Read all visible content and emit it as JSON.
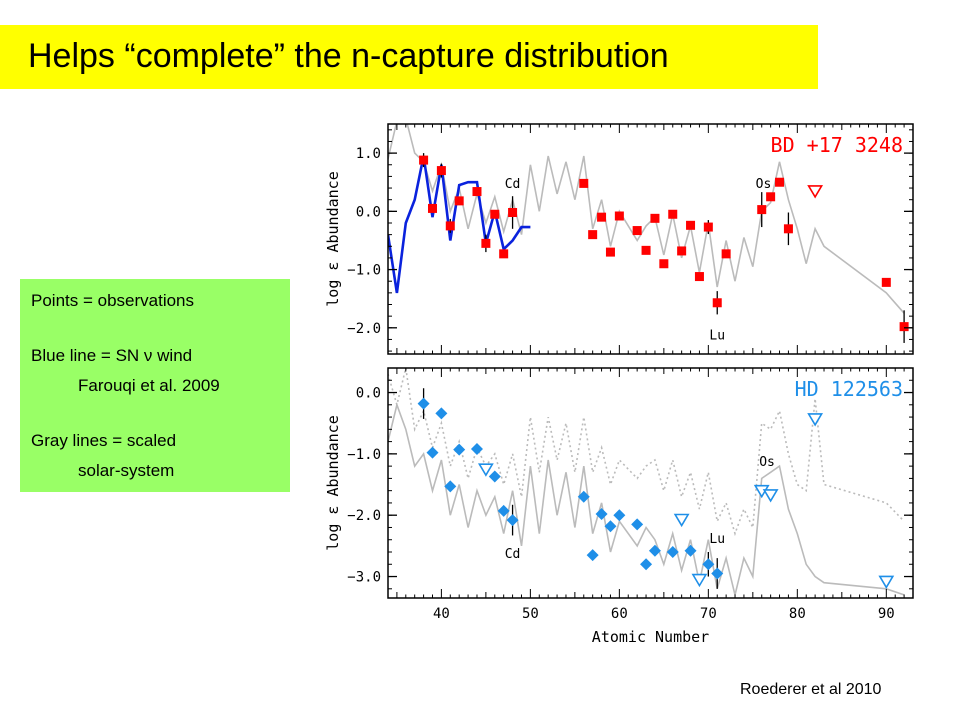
{
  "header": {
    "title": "Helps “complete” the n-capture distribution"
  },
  "legend": {
    "line1": "Points = observations",
    "line2": "Blue line = SN ν wind",
    "line3": "Farouqi et al. 2009",
    "line4": "Gray lines = scaled",
    "line5": "solar-system"
  },
  "citation": "Roederer et al 2010",
  "colors": {
    "title_bg": "#ffff00",
    "legend_bg": "#99ff66",
    "red": "#ff0000",
    "blue": "#0a22dd",
    "cyan": "#1f8fe8",
    "gray": "#bbbbbb"
  },
  "chart_data": [
    {
      "type": "scatter",
      "star": "BD +17 3248",
      "xlabel": "",
      "ylabel": "log ε Abundance",
      "xlim": [
        34,
        93
      ],
      "ylim": [
        -2.45,
        1.5
      ],
      "y_ticks": [
        1.0,
        0.0,
        -1.0,
        -2.0
      ],
      "y_tick_labels": [
        "1.0",
        "0.0",
        "−1.0",
        "−2.0"
      ],
      "annotations": [
        {
          "text": "Cd",
          "x": 48.0,
          "y": 0.4
        },
        {
          "text": "Os",
          "x": 76.2,
          "y": 0.4
        },
        {
          "text": "Lu",
          "x": 71.0,
          "y": -2.2
        }
      ],
      "points": [
        {
          "x": 38,
          "y": 0.88,
          "err": 0.12
        },
        {
          "x": 39,
          "y": 0.05
        },
        {
          "x": 40,
          "y": 0.7,
          "err": 0.12
        },
        {
          "x": 41,
          "y": -0.25,
          "err": 0.12
        },
        {
          "x": 42,
          "y": 0.18
        },
        {
          "x": 44,
          "y": 0.34
        },
        {
          "x": 45,
          "y": -0.55,
          "err": 0.15
        },
        {
          "x": 46,
          "y": -0.05
        },
        {
          "x": 47,
          "y": -0.73
        },
        {
          "x": 48,
          "y": -0.02,
          "err": 0.28
        },
        {
          "x": 56,
          "y": 0.48
        },
        {
          "x": 57,
          "y": -0.4
        },
        {
          "x": 58,
          "y": -0.1
        },
        {
          "x": 59,
          "y": -0.7
        },
        {
          "x": 60,
          "y": -0.08
        },
        {
          "x": 62,
          "y": -0.33
        },
        {
          "x": 63,
          "y": -0.67
        },
        {
          "x": 64,
          "y": -0.12
        },
        {
          "x": 65,
          "y": -0.9
        },
        {
          "x": 66,
          "y": -0.05
        },
        {
          "x": 67,
          "y": -0.68
        },
        {
          "x": 68,
          "y": -0.24
        },
        {
          "x": 69,
          "y": -1.12
        },
        {
          "x": 70,
          "y": -0.27,
          "err": 0.12
        },
        {
          "x": 71,
          "y": -1.57,
          "err": 0.2
        },
        {
          "x": 72,
          "y": -0.73
        },
        {
          "x": 76,
          "y": 0.03,
          "err": 0.3
        },
        {
          "x": 77,
          "y": 0.25
        },
        {
          "x": 78,
          "y": 0.5
        },
        {
          "x": 79,
          "y": -0.3,
          "err": 0.28
        },
        {
          "x": 90,
          "y": -1.22
        },
        {
          "x": 92,
          "y": -1.98,
          "err": 0.28
        }
      ],
      "upper_limits": [
        {
          "x": 82,
          "y": 0.35
        }
      ],
      "solar_line": {
        "x": [
          34,
          35,
          36,
          37,
          38,
          39,
          40,
          41,
          42,
          43,
          44,
          45,
          46,
          47,
          48,
          49,
          50,
          51,
          52,
          53,
          54,
          55,
          56,
          57,
          58,
          59,
          60,
          62,
          63,
          64,
          65,
          66,
          67,
          68,
          69,
          70,
          71,
          72,
          73,
          74,
          75,
          76,
          77,
          78,
          79,
          80,
          81,
          82,
          83,
          90,
          92
        ],
        "y": [
          0.9,
          1.55,
          1.6,
          1.0,
          0.85,
          0.35,
          0.8,
          0.0,
          0.4,
          -0.3,
          0.3,
          -0.2,
          0.25,
          -0.35,
          0.2,
          -0.4,
          0.8,
          0.0,
          0.95,
          0.3,
          0.85,
          0.2,
          0.95,
          -0.3,
          0.2,
          -0.6,
          0.0,
          -0.5,
          -0.25,
          -0.1,
          -0.75,
          -0.05,
          -0.8,
          -0.25,
          -1.05,
          -0.2,
          -1.3,
          -0.5,
          -1.2,
          -0.45,
          -0.95,
          0.0,
          0.15,
          0.85,
          0.2,
          -0.3,
          -0.9,
          -0.3,
          -0.6,
          -1.4,
          -1.75
        ]
      },
      "model_line": {
        "x": [
          34,
          35,
          36,
          37,
          38,
          39,
          40,
          41,
          42,
          43,
          44,
          45,
          46,
          47,
          48,
          49,
          50
        ],
        "y": [
          -0.4,
          -1.4,
          -0.2,
          0.2,
          0.95,
          -0.1,
          0.8,
          -0.5,
          0.45,
          0.5,
          0.5,
          -0.55,
          0.0,
          -0.65,
          -0.5,
          -0.27,
          -0.27
        ]
      }
    },
    {
      "type": "scatter",
      "star": "HD 122563",
      "xlabel": "Atomic Number",
      "ylabel": "log ε Abundance",
      "xlim": [
        34,
        93
      ],
      "ylim": [
        -3.35,
        0.4
      ],
      "y_ticks": [
        0.0,
        -1.0,
        -2.0,
        -3.0
      ],
      "y_tick_labels": [
        "0.0",
        "−1.0",
        "−2.0",
        "−3.0"
      ],
      "x_ticks": [
        40,
        50,
        60,
        70,
        80,
        90
      ],
      "x_tick_labels": [
        "40",
        "50",
        "60",
        "70",
        "80",
        "90"
      ],
      "annotations": [
        {
          "text": "Os",
          "x": 76.6,
          "y": -1.2
        },
        {
          "text": "Lu",
          "x": 71.0,
          "y": -2.45
        },
        {
          "text": "Cd",
          "x": 48.0,
          "y": -2.7
        }
      ],
      "points": [
        {
          "x": 38,
          "y": -0.18,
          "err": 0.25
        },
        {
          "x": 39,
          "y": -0.98
        },
        {
          "x": 40,
          "y": -0.34
        },
        {
          "x": 41,
          "y": -1.53
        },
        {
          "x": 42,
          "y": -0.93
        },
        {
          "x": 44,
          "y": -0.92
        },
        {
          "x": 46,
          "y": -1.37
        },
        {
          "x": 47,
          "y": -1.93
        },
        {
          "x": 48,
          "y": -2.08,
          "err": 0.25
        },
        {
          "x": 56,
          "y": -1.7
        },
        {
          "x": 57,
          "y": -2.65
        },
        {
          "x": 58,
          "y": -1.98
        },
        {
          "x": 59,
          "y": -2.18
        },
        {
          "x": 60,
          "y": -2.0
        },
        {
          "x": 62,
          "y": -2.15
        },
        {
          "x": 63,
          "y": -2.8
        },
        {
          "x": 64,
          "y": -2.58
        },
        {
          "x": 66,
          "y": -2.6
        },
        {
          "x": 68,
          "y": -2.58
        },
        {
          "x": 70,
          "y": -2.8,
          "err": 0.2
        },
        {
          "x": 71,
          "y": -2.95,
          "err": 0.25
        }
      ],
      "upper_limits": [
        {
          "x": 45,
          "y": -1.25
        },
        {
          "x": 67,
          "y": -2.07
        },
        {
          "x": 69,
          "y": -3.05
        },
        {
          "x": 76,
          "y": -1.6
        },
        {
          "x": 77,
          "y": -1.67
        },
        {
          "x": 82,
          "y": -0.43
        },
        {
          "x": 90,
          "y": -3.08
        }
      ],
      "solar_line": {
        "x": [
          34,
          35,
          36,
          37,
          38,
          39,
          40,
          41,
          42,
          43,
          44,
          45,
          46,
          47,
          48,
          49,
          50,
          51,
          52,
          53,
          54,
          55,
          56,
          57,
          58,
          59,
          60,
          62,
          63,
          64,
          65,
          66,
          67,
          68,
          69,
          70,
          71,
          72,
          73,
          74,
          75,
          76,
          77,
          78,
          79,
          80,
          81,
          82,
          83,
          90,
          92
        ],
        "y": [
          -0.8,
          -0.2,
          -0.6,
          -1.2,
          -1.0,
          -1.6,
          -1.1,
          -2.0,
          -1.5,
          -2.2,
          -1.6,
          -2.0,
          -1.7,
          -2.3,
          -1.6,
          -2.5,
          -1.2,
          -2.3,
          -1.1,
          -2.0,
          -1.3,
          -2.2,
          -1.2,
          -2.3,
          -1.8,
          -2.6,
          -2.1,
          -2.5,
          -2.2,
          -2.4,
          -2.8,
          -2.3,
          -2.9,
          -2.4,
          -3.1,
          -2.4,
          -3.2,
          -2.7,
          -3.3,
          -2.7,
          -3.0,
          -1.4,
          -1.3,
          -1.2,
          -1.9,
          -2.3,
          -2.8,
          -3.0,
          -3.1,
          -3.2,
          -3.3
        ]
      },
      "solar_dotted": {
        "x": [
          34,
          35,
          36,
          37,
          38,
          39,
          40,
          41,
          42,
          43,
          44,
          45,
          46,
          47,
          48,
          49,
          50,
          51,
          52,
          53,
          54,
          55,
          56,
          57,
          58,
          59,
          60,
          62,
          63,
          64,
          65,
          66,
          67,
          68,
          69,
          70,
          71,
          72,
          73,
          74,
          75,
          76,
          77,
          78,
          79,
          80,
          81,
          82,
          83,
          90,
          92
        ],
        "y": [
          0.3,
          -0.2,
          0.4,
          -0.6,
          -0.3,
          -0.9,
          -0.5,
          -1.2,
          -0.8,
          -1.4,
          -0.9,
          -1.2,
          -1.0,
          -1.5,
          -1.0,
          -1.7,
          -0.4,
          -1.3,
          -0.4,
          -1.1,
          -0.5,
          -1.3,
          -0.4,
          -1.3,
          -0.9,
          -1.5,
          -1.1,
          -1.4,
          -1.2,
          -1.1,
          -1.6,
          -1.1,
          -1.7,
          -1.3,
          -1.9,
          -1.3,
          -2.1,
          -1.8,
          -2.3,
          -1.9,
          -2.2,
          -0.5,
          -0.6,
          -0.3,
          -1.0,
          -1.5,
          -1.6,
          -0.1,
          -1.5,
          -1.8,
          -2.1
        ]
      }
    }
  ]
}
